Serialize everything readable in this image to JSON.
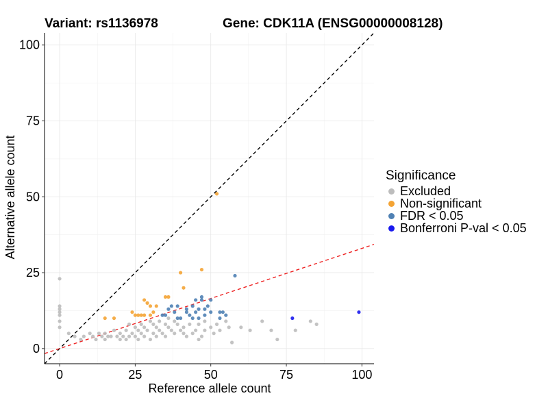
{
  "header": {
    "variant": "Variant: rs1136978",
    "gene": "Gene: CDK11A (ENSG00000008128)"
  },
  "legend": {
    "title": "Significance",
    "items": [
      {
        "label": "Excluded",
        "color": "#bdbdbd"
      },
      {
        "label": "Non-significant",
        "color": "#f4a435"
      },
      {
        "label": "FDR < 0.05",
        "color": "#4f81b4"
      },
      {
        "label": "Bonferroni P-val < 0.05",
        "color": "#1a1aee"
      }
    ]
  },
  "chart_data": {
    "type": "scatter",
    "xlabel": "Reference allele count",
    "ylabel": "Alternative allele count",
    "xlim": [
      -5,
      104
    ],
    "ylim": [
      -5,
      104
    ],
    "xticks": [
      0,
      25,
      50,
      75,
      100
    ],
    "yticks": [
      0,
      25,
      50,
      75,
      100
    ],
    "grid": true,
    "legend_position": "right",
    "reference_lines": [
      {
        "slope": 1,
        "intercept": 0,
        "style": "dashed",
        "color": "#000000"
      },
      {
        "slope": 0.33,
        "intercept": 0,
        "style": "dashed",
        "color": "#ee2222"
      }
    ],
    "series": [
      {
        "name": "Excluded",
        "color": "#bdbdbd",
        "points": [
          [
            0,
            23
          ],
          [
            0,
            14
          ],
          [
            0,
            13
          ],
          [
            0,
            12
          ],
          [
            0,
            11
          ],
          [
            0,
            9
          ],
          [
            0,
            7
          ],
          [
            3,
            5
          ],
          [
            5,
            4
          ],
          [
            7,
            3
          ],
          [
            8,
            4
          ],
          [
            10,
            5
          ],
          [
            11,
            4
          ],
          [
            12,
            3
          ],
          [
            13,
            5
          ],
          [
            14,
            4
          ],
          [
            15,
            5
          ],
          [
            15,
            3
          ],
          [
            16,
            4
          ],
          [
            17,
            4
          ],
          [
            18,
            6
          ],
          [
            19,
            4
          ],
          [
            20,
            5
          ],
          [
            20,
            3
          ],
          [
            21,
            4
          ],
          [
            22,
            6
          ],
          [
            22,
            3
          ],
          [
            23,
            4
          ],
          [
            23,
            8
          ],
          [
            24,
            5
          ],
          [
            25,
            4
          ],
          [
            25,
            7
          ],
          [
            26,
            3
          ],
          [
            26,
            6
          ],
          [
            27,
            5
          ],
          [
            27,
            8
          ],
          [
            28,
            4
          ],
          [
            28,
            7
          ],
          [
            29,
            6
          ],
          [
            30,
            3
          ],
          [
            30,
            9
          ],
          [
            31,
            5
          ],
          [
            31,
            8
          ],
          [
            32,
            4
          ],
          [
            32,
            7
          ],
          [
            33,
            6
          ],
          [
            33,
            9
          ],
          [
            34,
            5
          ],
          [
            35,
            8
          ],
          [
            35,
            4
          ],
          [
            36,
            7
          ],
          [
            36,
            10
          ],
          [
            37,
            6
          ],
          [
            38,
            5
          ],
          [
            38,
            9
          ],
          [
            39,
            8
          ],
          [
            40,
            6
          ],
          [
            41,
            5
          ],
          [
            41,
            7
          ],
          [
            42,
            4
          ],
          [
            43,
            8
          ],
          [
            44,
            5
          ],
          [
            45,
            6
          ],
          [
            46,
            3
          ],
          [
            46,
            8
          ],
          [
            47,
            4
          ],
          [
            48,
            6
          ],
          [
            48,
            9
          ],
          [
            50,
            7
          ],
          [
            51,
            5
          ],
          [
            52,
            8
          ],
          [
            53,
            6
          ],
          [
            55,
            9
          ],
          [
            56,
            7
          ],
          [
            57,
            2
          ],
          [
            60,
            7
          ],
          [
            63,
            6
          ],
          [
            67,
            9
          ],
          [
            70,
            6
          ],
          [
            72,
            3
          ],
          [
            78,
            6
          ],
          [
            83,
            9
          ],
          [
            85,
            8
          ]
        ]
      },
      {
        "name": "Non-significant",
        "color": "#f4a435",
        "points": [
          [
            15,
            10
          ],
          [
            18,
            10
          ],
          [
            24,
            12
          ],
          [
            25,
            11
          ],
          [
            26,
            11
          ],
          [
            27,
            11
          ],
          [
            28,
            16
          ],
          [
            28,
            11
          ],
          [
            29,
            15
          ],
          [
            30,
            11
          ],
          [
            30,
            14
          ],
          [
            31,
            12
          ],
          [
            32,
            14
          ],
          [
            35,
            17
          ],
          [
            36,
            17
          ],
          [
            40,
            25
          ],
          [
            41,
            20
          ],
          [
            47,
            26
          ],
          [
            52,
            51
          ]
        ]
      },
      {
        "name": "FDR < 0.05",
        "color": "#4f81b4",
        "points": [
          [
            34,
            11
          ],
          [
            35,
            11
          ],
          [
            36,
            13
          ],
          [
            37,
            14
          ],
          [
            38,
            12
          ],
          [
            39,
            10
          ],
          [
            39,
            14
          ],
          [
            40,
            10
          ],
          [
            42,
            12
          ],
          [
            42,
            13
          ],
          [
            43,
            11
          ],
          [
            44,
            10
          ],
          [
            44,
            14
          ],
          [
            45,
            12
          ],
          [
            45,
            16
          ],
          [
            46,
            13
          ],
          [
            46,
            10
          ],
          [
            47,
            16
          ],
          [
            47,
            17
          ],
          [
            48,
            13
          ],
          [
            48,
            11
          ],
          [
            49,
            14
          ],
          [
            50,
            16
          ],
          [
            50,
            12
          ],
          [
            53,
            12
          ],
          [
            53,
            10
          ],
          [
            54,
            12
          ],
          [
            55,
            11
          ],
          [
            58,
            24
          ]
        ]
      },
      {
        "name": "Bonferroni P-val < 0.05",
        "color": "#1a1aee",
        "points": [
          [
            77,
            10
          ],
          [
            99,
            12
          ]
        ]
      }
    ]
  }
}
